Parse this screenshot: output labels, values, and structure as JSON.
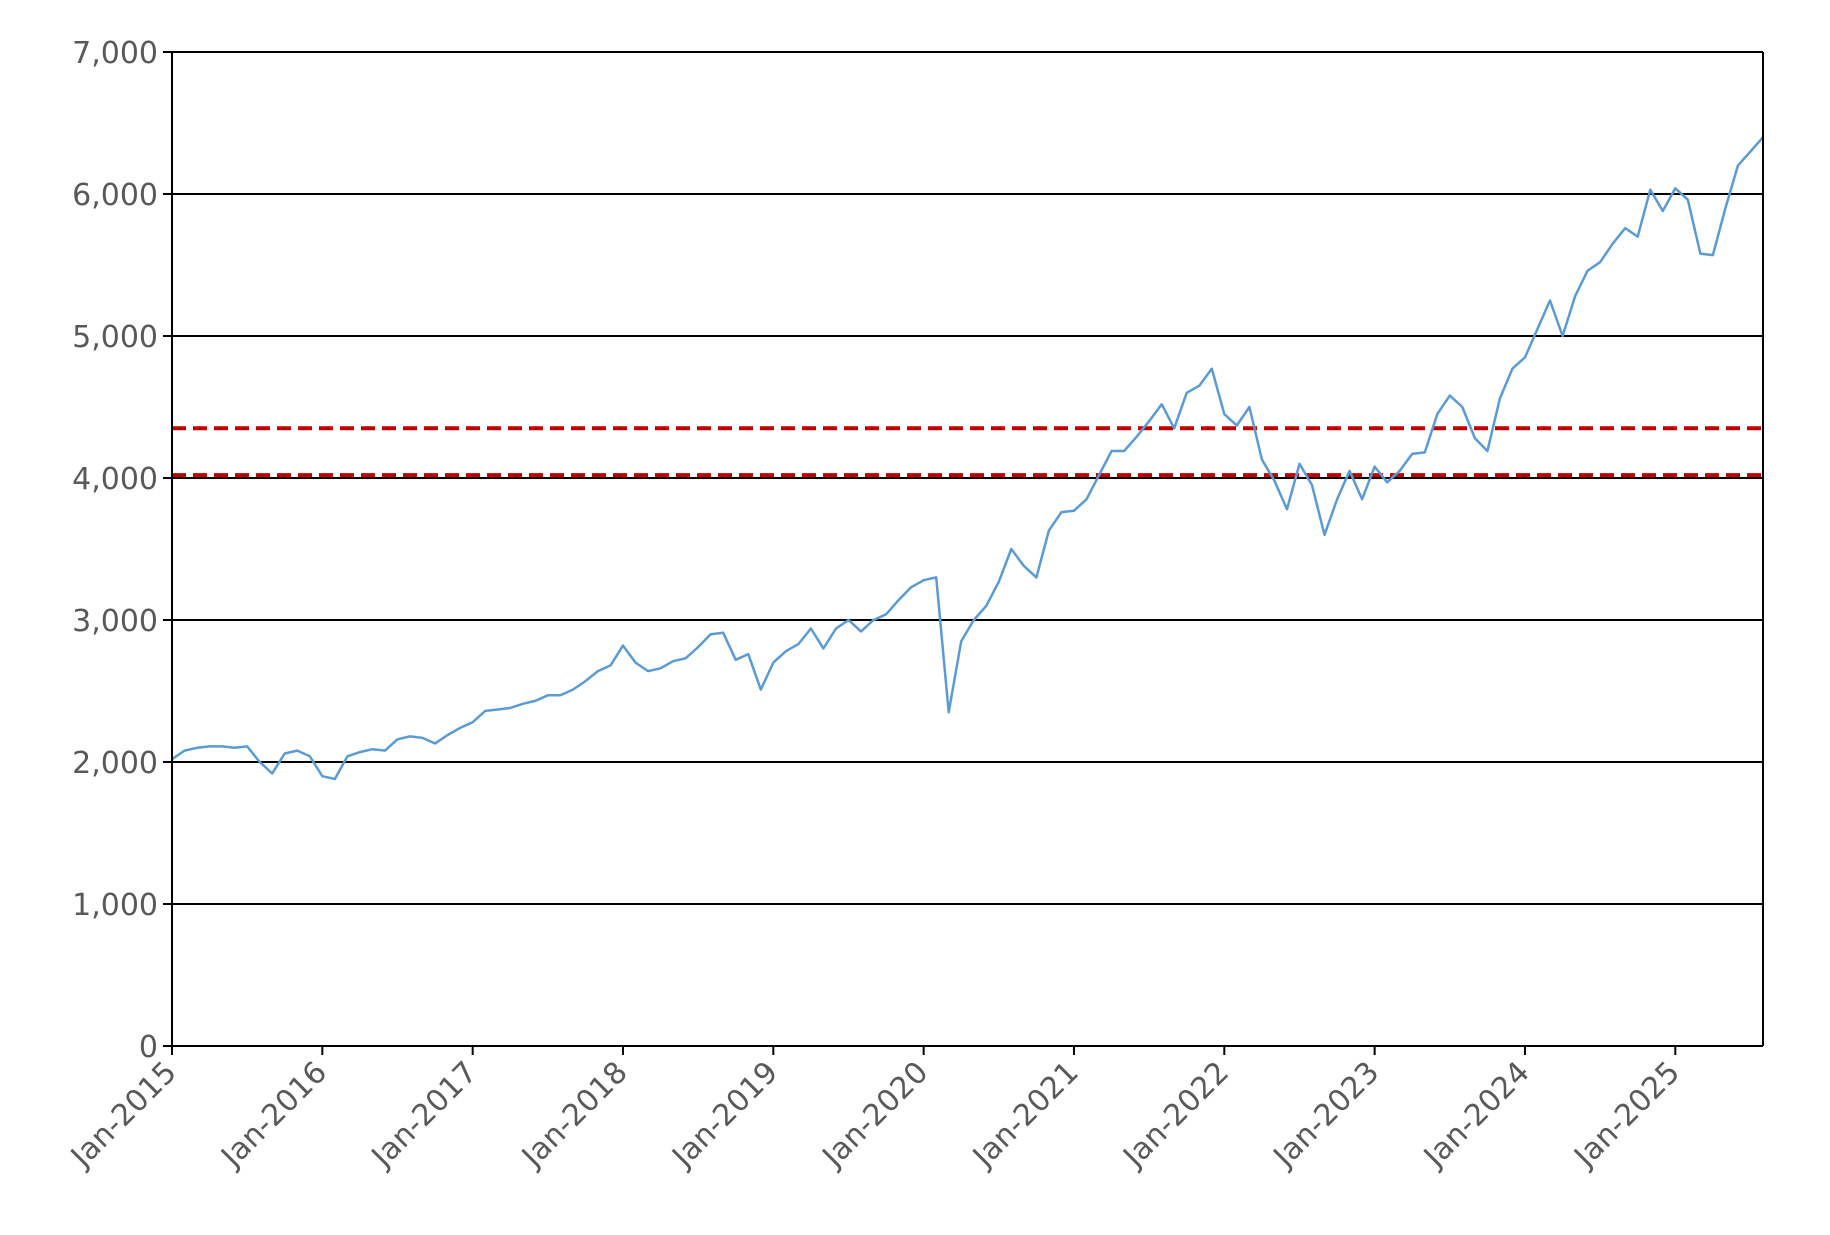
{
  "chart_data": {
    "type": "line",
    "title": "",
    "xlabel": "",
    "ylabel": "",
    "xlim": [
      "2015-01",
      "2025-08"
    ],
    "ylim": [
      0,
      7000
    ],
    "y_ticks": [
      0,
      1000,
      2000,
      3000,
      4000,
      5000,
      6000,
      7000
    ],
    "y_tick_labels": [
      "0",
      "1,000",
      "2,000",
      "3,000",
      "4,000",
      "5,000",
      "6,000",
      "7,000"
    ],
    "x_ticks": [
      "2015-01",
      "2016-01",
      "2017-01",
      "2018-01",
      "2019-01",
      "2020-01",
      "2021-01",
      "2022-01",
      "2023-01",
      "2024-01",
      "2025-01"
    ],
    "x_tick_labels": [
      "Jan-2015",
      "Jan-2016",
      "Jan-2017",
      "Jan-2018",
      "Jan-2019",
      "Jan-2020",
      "Jan-2021",
      "Jan-2022",
      "Jan-2023",
      "Jan-2024",
      "Jan-2025"
    ],
    "grid": true,
    "legend": "none",
    "colors": {
      "series": "#5b9bd5",
      "reference": "#c00000",
      "grid": "#000000"
    },
    "series": [
      {
        "color": "#5b9bd5",
        "x": [
          "2015-01",
          "2015-02",
          "2015-03",
          "2015-04",
          "2015-05",
          "2015-06",
          "2015-07",
          "2015-08",
          "2015-09",
          "2015-10",
          "2015-11",
          "2015-12",
          "2016-01",
          "2016-02",
          "2016-03",
          "2016-04",
          "2016-05",
          "2016-06",
          "2016-07",
          "2016-08",
          "2016-09",
          "2016-10",
          "2016-11",
          "2016-12",
          "2017-01",
          "2017-02",
          "2017-03",
          "2017-04",
          "2017-05",
          "2017-06",
          "2017-07",
          "2017-08",
          "2017-09",
          "2017-10",
          "2017-11",
          "2017-12",
          "2018-01",
          "2018-02",
          "2018-03",
          "2018-04",
          "2018-05",
          "2018-06",
          "2018-07",
          "2018-08",
          "2018-09",
          "2018-10",
          "2018-11",
          "2018-12",
          "2019-01",
          "2019-02",
          "2019-03",
          "2019-04",
          "2019-05",
          "2019-06",
          "2019-07",
          "2019-08",
          "2019-09",
          "2019-10",
          "2019-11",
          "2019-12",
          "2020-01",
          "2020-02",
          "2020-03",
          "2020-04",
          "2020-05",
          "2020-06",
          "2020-07",
          "2020-08",
          "2020-09",
          "2020-10",
          "2020-11",
          "2020-12",
          "2021-01",
          "2021-02",
          "2021-03",
          "2021-04",
          "2021-05",
          "2021-06",
          "2021-07",
          "2021-08",
          "2021-09",
          "2021-10",
          "2021-11",
          "2021-12",
          "2022-01",
          "2022-02",
          "2022-03",
          "2022-04",
          "2022-05",
          "2022-06",
          "2022-07",
          "2022-08",
          "2022-09",
          "2022-10",
          "2022-11",
          "2022-12",
          "2023-01",
          "2023-02",
          "2023-03",
          "2023-04",
          "2023-05",
          "2023-06",
          "2023-07",
          "2023-08",
          "2023-09",
          "2023-10",
          "2023-11",
          "2023-12",
          "2024-01",
          "2024-02",
          "2024-03",
          "2024-04",
          "2024-05",
          "2024-06",
          "2024-07",
          "2024-08",
          "2024-09",
          "2024-10",
          "2024-11",
          "2024-12",
          "2025-01",
          "2025-02",
          "2025-03",
          "2025-04",
          "2025-05",
          "2025-06",
          "2025-07",
          "2025-08"
        ],
        "values": [
          2020,
          2080,
          2100,
          2110,
          2110,
          2100,
          2110,
          2000,
          1920,
          2060,
          2080,
          2040,
          1900,
          1880,
          2040,
          2070,
          2090,
          2080,
          2160,
          2180,
          2170,
          2130,
          2190,
          2240,
          2280,
          2360,
          2370,
          2380,
          2410,
          2430,
          2470,
          2470,
          2510,
          2570,
          2640,
          2680,
          2820,
          2700,
          2640,
          2660,
          2710,
          2730,
          2810,
          2900,
          2910,
          2720,
          2760,
          2510,
          2700,
          2780,
          2830,
          2940,
          2800,
          2940,
          3000,
          2920,
          3000,
          3040,
          3140,
          3230,
          3280,
          3300,
          2350,
          2850,
          3000,
          3100,
          3270,
          3500,
          3380,
          3300,
          3630,
          3760,
          3770,
          3850,
          4020,
          4190,
          4190,
          4290,
          4400,
          4520,
          4350,
          4600,
          4650,
          4770,
          4450,
          4370,
          4500,
          4130,
          3980,
          3780,
          4100,
          3950,
          3600,
          3850,
          4050,
          3850,
          4080,
          3970,
          4050,
          4170,
          4180,
          4450,
          4580,
          4500,
          4280,
          4190,
          4560,
          4770,
          4850,
          5050,
          5250,
          5000,
          5280,
          5460,
          5520,
          5650,
          5760,
          5700,
          6030,
          5880,
          6040,
          5960,
          5580,
          5570,
          5900,
          6200,
          6300,
          6400
        ]
      }
    ],
    "reference_lines": [
      {
        "value": 4350,
        "style": "dashed",
        "color": "#c00000"
      },
      {
        "value": 4020,
        "style": "dashed",
        "color": "#c00000"
      }
    ]
  }
}
